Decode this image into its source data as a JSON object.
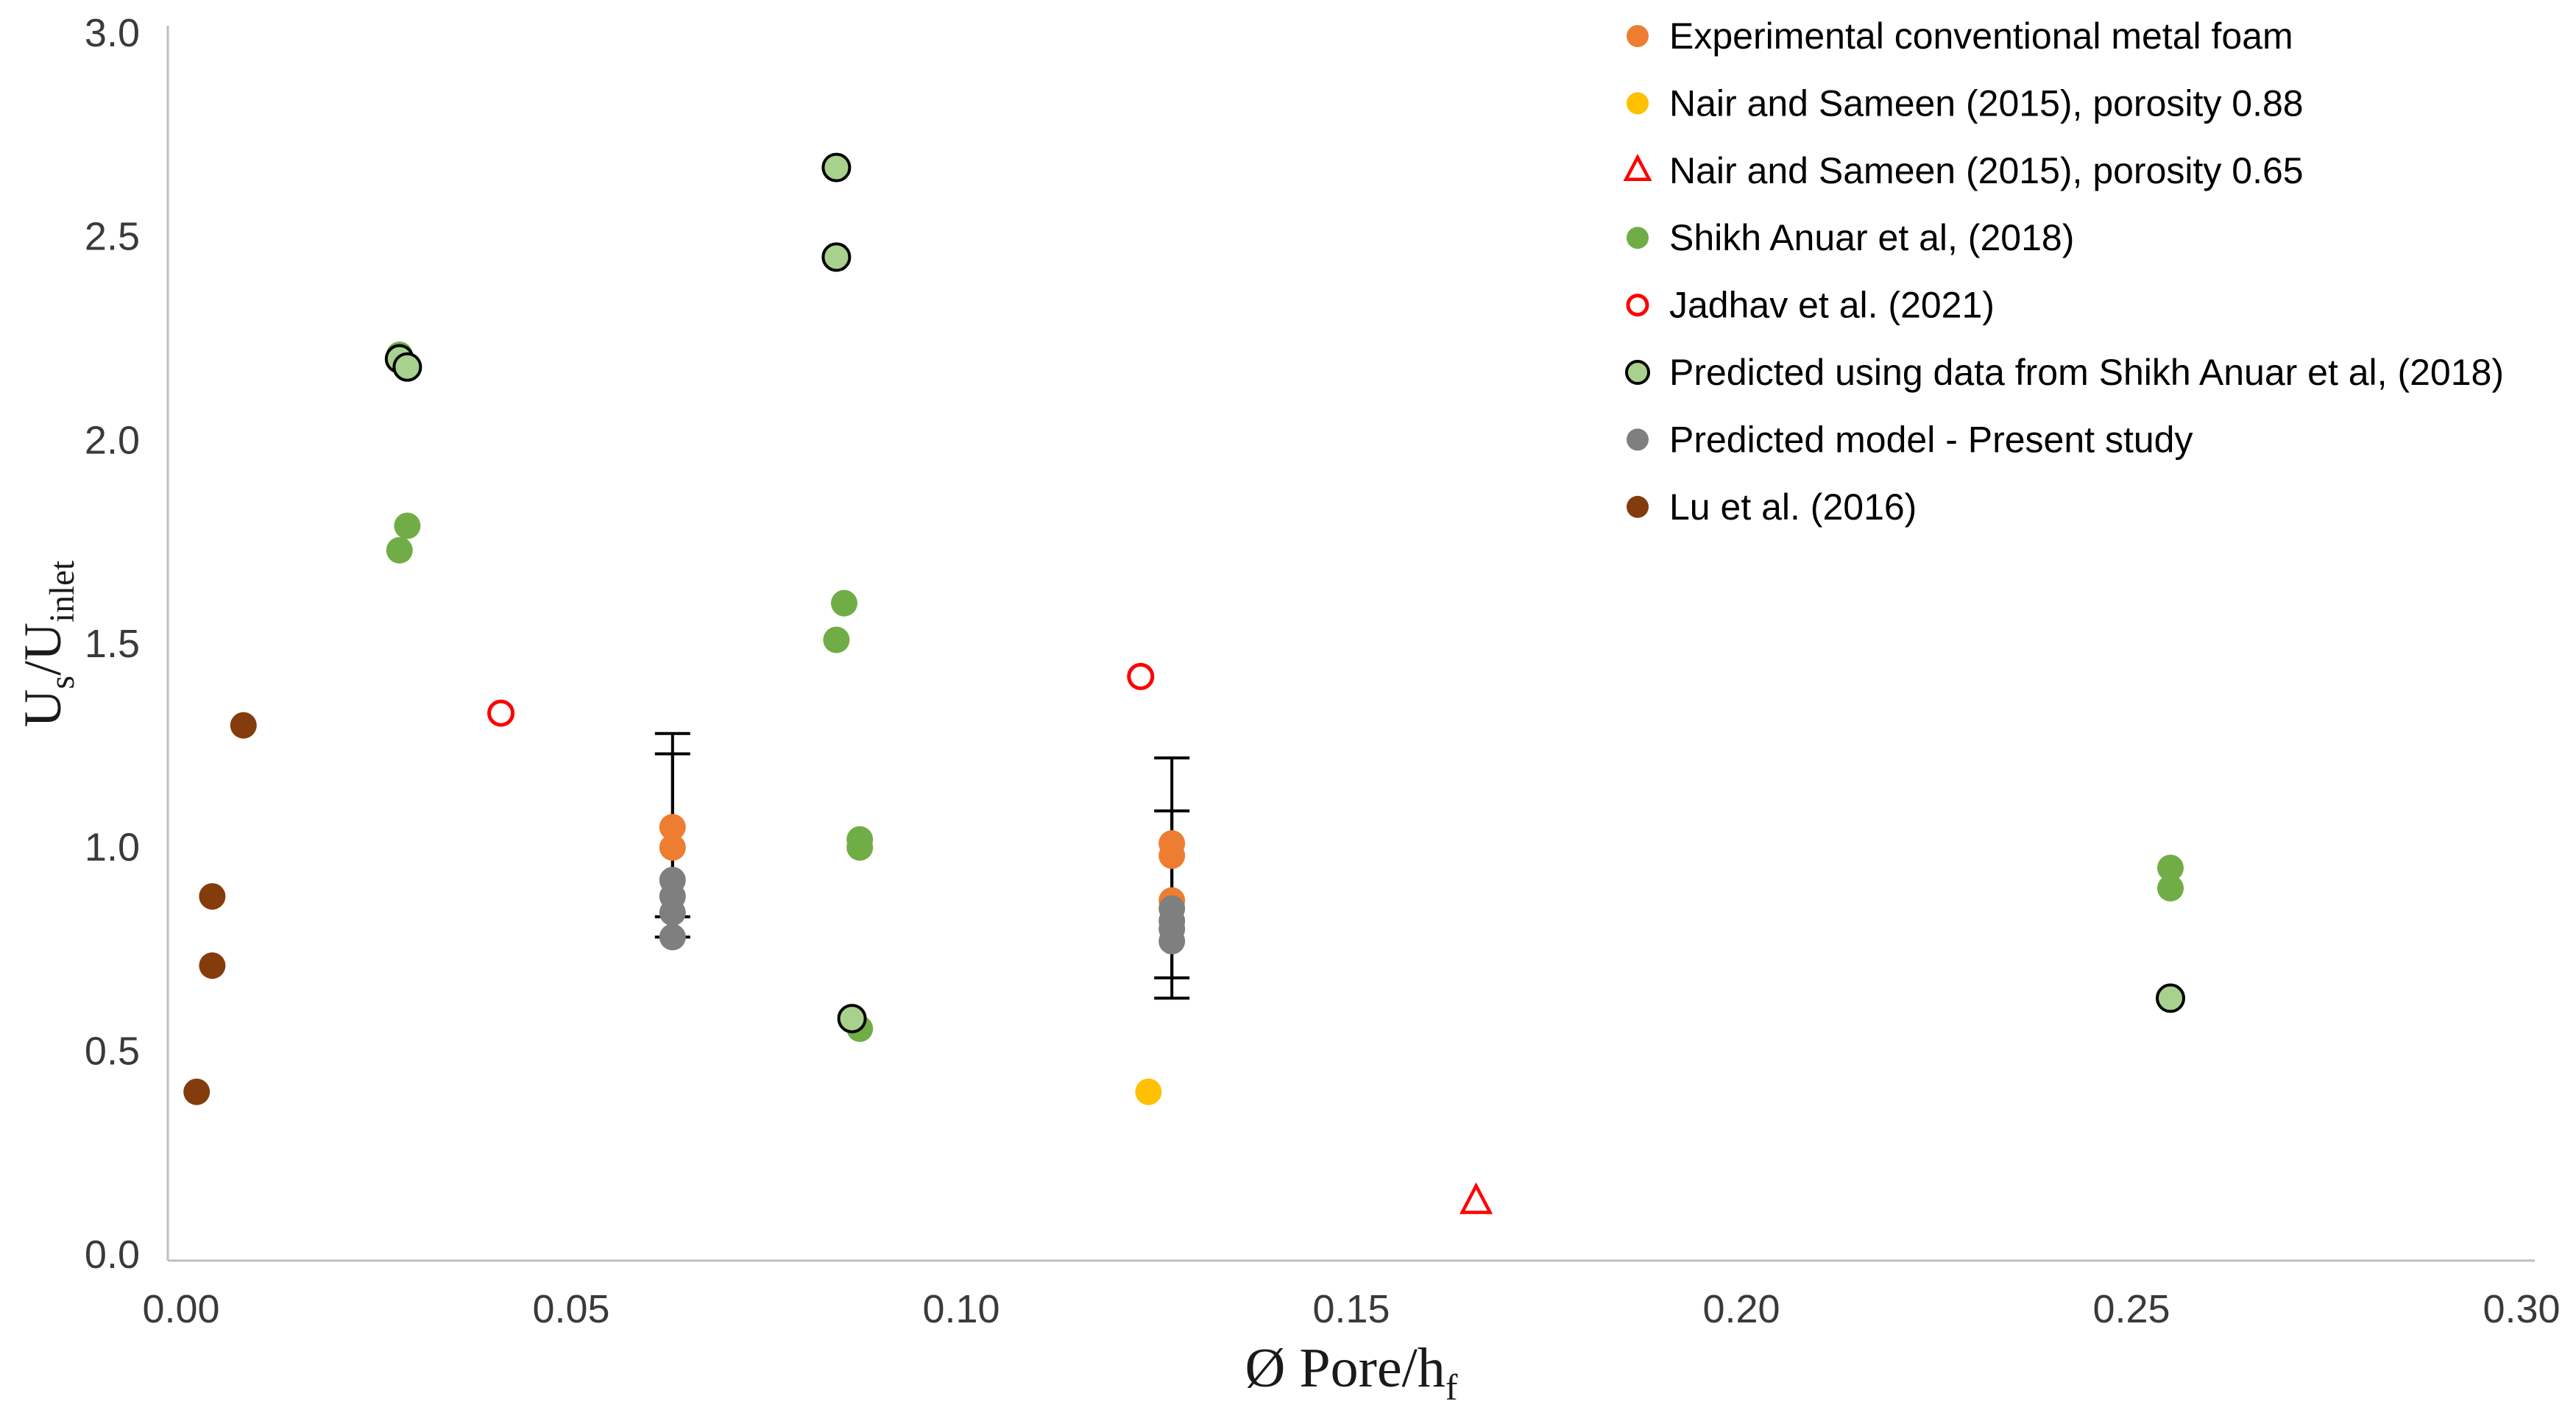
{
  "page": {
    "background": "#FFFFFF"
  },
  "chart_data": {
    "type": "scatter",
    "title": "",
    "xlabel": "Ø Pore/hf",
    "xlabel_parts": [
      {
        "text": "Ø Pore/h"
      },
      {
        "text": "f",
        "sub": true
      }
    ],
    "ylabel": "Us/Uinlet",
    "ylabel_parts": [
      {
        "text": "U"
      },
      {
        "text": "s",
        "sub": true
      },
      {
        "text": "/U"
      },
      {
        "text": "inlet",
        "sub": true
      }
    ],
    "xlim": [
      0,
      0.3
    ],
    "ylim": [
      0,
      3.0
    ],
    "xticks": [
      0,
      0.05,
      0.1,
      0.15,
      0.2,
      0.25,
      0.3
    ],
    "xtick_labels": [
      "0.00",
      "0.05",
      "0.10",
      "0.15",
      "0.20",
      "0.25",
      "0.30"
    ],
    "yticks": [
      0,
      0.5,
      1.0,
      1.5,
      2.0,
      2.5,
      3.0
    ],
    "ytick_labels": [
      "0.0",
      "0.5",
      "1.0",
      "1.5",
      "2.0",
      "2.5",
      "3.0"
    ],
    "grid": false,
    "legend_position": "top-right",
    "axis_color": "#BFBFBF",
    "text_color": "#3A3A3A",
    "legend_text_color": "#000000",
    "error_bar_color": "#000000",
    "series": [
      {
        "name": "Experimental conventional metal foam",
        "marker": "circle",
        "color": "#ED7D31",
        "points": [
          [
            0.063,
            1.05
          ],
          [
            0.063,
            1.0
          ],
          [
            0.127,
            1.01
          ],
          [
            0.127,
            0.98
          ],
          [
            0.127,
            0.87
          ]
        ]
      },
      {
        "name": "Nair and Sameen (2015), porosity 0.88",
        "marker": "circle",
        "color": "#FFC000",
        "points": [
          [
            0.124,
            0.4
          ]
        ]
      },
      {
        "name": "Nair and Sameen (2015), porosity 0.65",
        "marker": "triangle-open",
        "color": "#FF0000",
        "points": [
          [
            0.166,
            0.13
          ]
        ]
      },
      {
        "name": "Shikh Anuar et al, (2018)",
        "marker": "circle",
        "color": "#70AD47",
        "points": [
          [
            0.028,
            2.21
          ],
          [
            0.029,
            1.79
          ],
          [
            0.028,
            1.73
          ],
          [
            0.085,
            1.6
          ],
          [
            0.084,
            1.51
          ],
          [
            0.087,
            1.02
          ],
          [
            0.087,
            1.0
          ],
          [
            0.087,
            0.555
          ],
          [
            0.255,
            0.95
          ],
          [
            0.255,
            0.9
          ]
        ]
      },
      {
        "name": "Jadhav et al. (2021)",
        "marker": "circle-open",
        "color": "#FF0000",
        "points": [
          [
            0.041,
            1.33
          ],
          [
            0.123,
            1.42
          ]
        ]
      },
      {
        "name": "Predicted using data from Shikh Anuar et al, (2018)",
        "marker": "circle-outlined",
        "color": "#A9D18E",
        "outline": "#000000",
        "points": [
          [
            0.084,
            2.67
          ],
          [
            0.084,
            2.45
          ],
          [
            0.028,
            2.2
          ],
          [
            0.029,
            2.18
          ],
          [
            0.086,
            0.58
          ],
          [
            0.255,
            0.63
          ]
        ]
      },
      {
        "name": "Predicted model - Present study",
        "marker": "circle",
        "color": "#7F7F7F",
        "points": [
          [
            0.063,
            0.92
          ],
          [
            0.063,
            0.88
          ],
          [
            0.063,
            0.84
          ],
          [
            0.063,
            0.78
          ],
          [
            0.127,
            0.85
          ],
          [
            0.127,
            0.82
          ],
          [
            0.127,
            0.8
          ],
          [
            0.127,
            0.77
          ]
        ]
      },
      {
        "name": "Lu et al. (2016)",
        "marker": "circle",
        "color": "#843C0C",
        "points": [
          [
            0.002,
            0.4
          ],
          [
            0.004,
            0.71
          ],
          [
            0.004,
            0.88
          ],
          [
            0.008,
            1.3
          ]
        ]
      }
    ],
    "error_bars": [
      {
        "x": 0.063,
        "low": 0.78,
        "high": 1.28
      },
      {
        "x": 0.063,
        "low": 0.83,
        "high": 1.23
      },
      {
        "x": 0.127,
        "low": 0.63,
        "high": 1.22
      },
      {
        "x": 0.127,
        "low": 0.68,
        "high": 1.09
      }
    ]
  }
}
